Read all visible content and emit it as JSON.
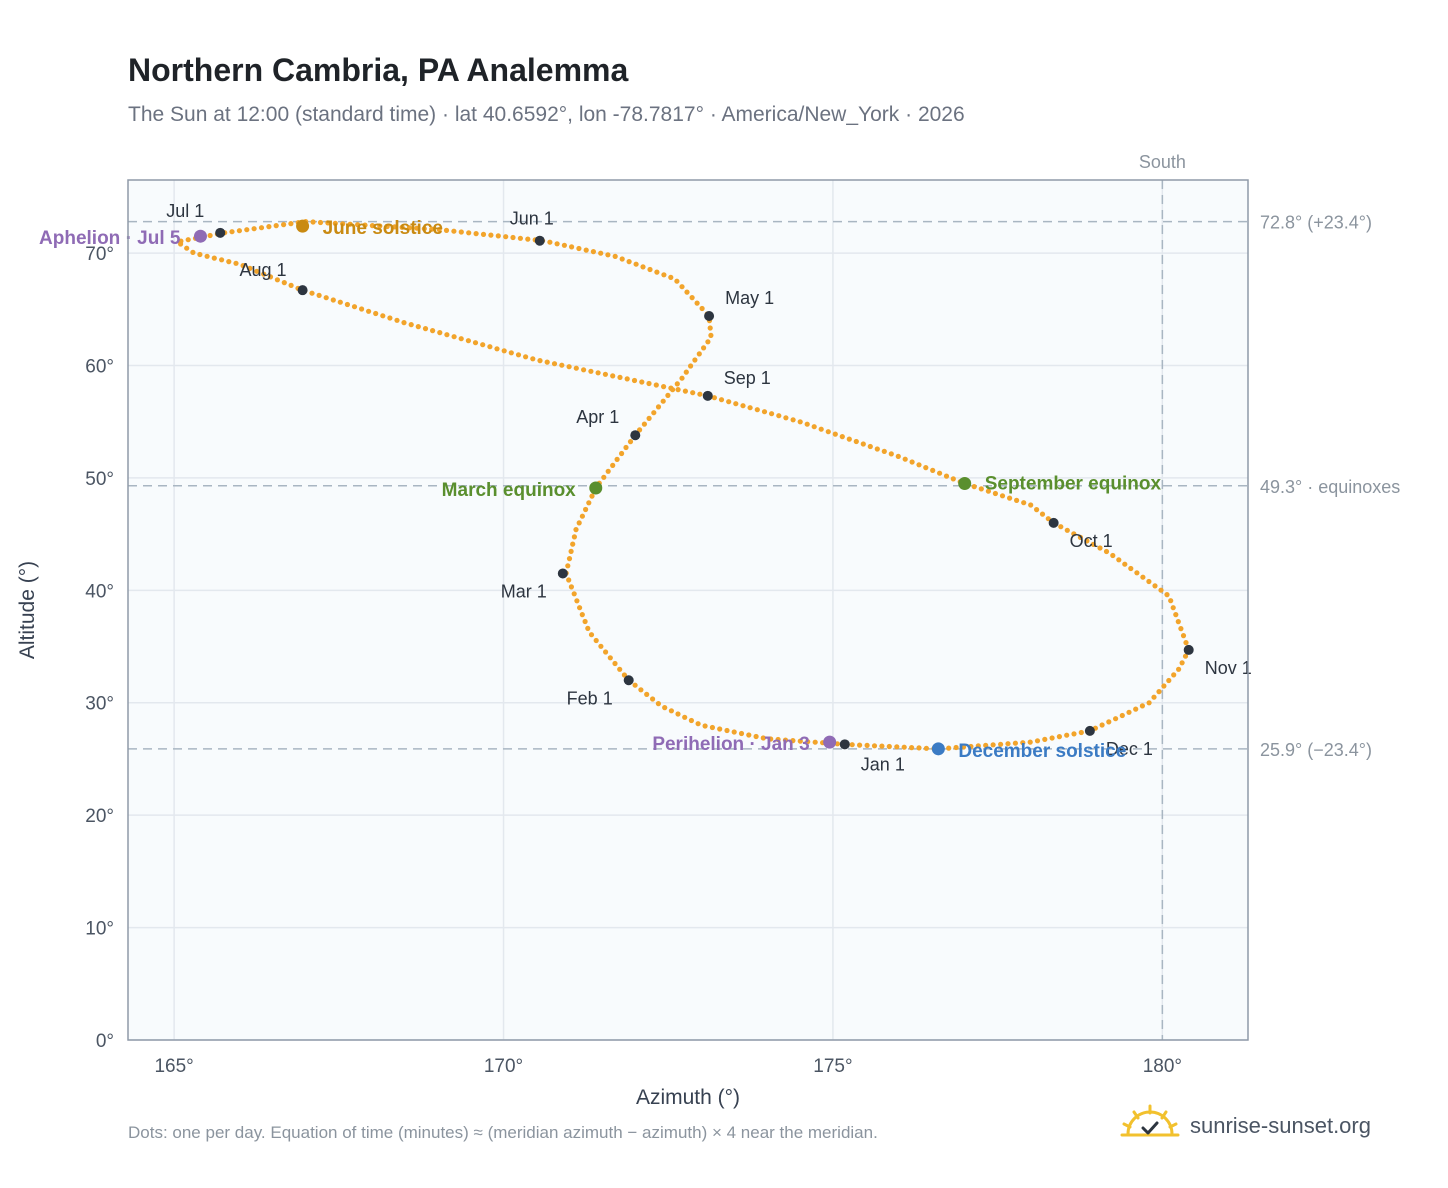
{
  "header": {
    "title": "Northern Cambria, PA Analemma",
    "subtitle": "The Sun at 12:00 (standard time) · lat 40.6592°, lon -78.7817° · America/New_York · 2026"
  },
  "footer": {
    "note": "Dots: one per day. Equation of time (minutes) ≈ (meridian azimuth − azimuth) × 4 near the meridian.",
    "brand": "sunrise-sunset.org"
  },
  "colors": {
    "path": "#F2A42B",
    "month_marker": "#2d3540",
    "june_solstice": "#C98A12",
    "december_solstice": "#3B7BC4",
    "equinox": "#5A8F2E",
    "apsis": "#8F6BB5",
    "plot_bg": "#F8FBFD",
    "grid": "#e3e8ee",
    "reference": "#a9b6c2",
    "frame": "#8f9aa8"
  },
  "chart_data": {
    "type": "scatter",
    "xlabel": "Azimuth (°)",
    "ylabel": "Altitude (°)",
    "xlim": [
      164.3,
      181.3
    ],
    "ylim": [
      0,
      76.5
    ],
    "x_ticks": [
      165,
      170,
      175,
      180
    ],
    "x_tick_labels": [
      "165°",
      "170°",
      "175°",
      "180°"
    ],
    "y_ticks": [
      0,
      10,
      20,
      30,
      40,
      50,
      60,
      70
    ],
    "y_tick_labels": [
      "0°",
      "10°",
      "20°",
      "30°",
      "40°",
      "50°",
      "60°",
      "70°"
    ],
    "grid": true,
    "meridian": {
      "azimuth": 180,
      "label": "South"
    },
    "reference_lines": [
      {
        "altitude": 72.8,
        "label": "72.8° (+23.4°)"
      },
      {
        "altitude": 49.3,
        "label": "49.3° · equinoxes"
      },
      {
        "altitude": 25.9,
        "label": "25.9° (−23.4°)"
      }
    ],
    "path_points": [
      [
        175.18,
        26.3
      ],
      [
        174.0,
        26.8
      ],
      [
        173.0,
        28.0
      ],
      [
        172.4,
        29.7
      ],
      [
        171.9,
        32.0
      ],
      [
        171.3,
        36.3
      ],
      [
        170.95,
        41.5
      ],
      [
        171.1,
        45.4
      ],
      [
        171.4,
        49.1
      ],
      [
        172.0,
        53.8
      ],
      [
        172.7,
        58.8
      ],
      [
        173.15,
        62.5
      ],
      [
        173.12,
        64.4
      ],
      [
        172.6,
        67.7
      ],
      [
        171.7,
        69.7
      ],
      [
        170.6,
        71.1
      ],
      [
        169.0,
        72.1
      ],
      [
        167.0,
        72.8
      ],
      [
        165.75,
        71.8
      ],
      [
        165.05,
        71.0
      ],
      [
        165.3,
        70.0
      ],
      [
        166.0,
        69.0
      ],
      [
        166.95,
        66.7
      ],
      [
        168.5,
        63.8
      ],
      [
        170.5,
        60.5
      ],
      [
        173.1,
        57.3
      ],
      [
        174.5,
        55.0
      ],
      [
        176.0,
        51.9
      ],
      [
        177.0,
        49.5
      ],
      [
        178.0,
        47.6
      ],
      [
        178.35,
        46.0
      ],
      [
        179.2,
        43.3
      ],
      [
        180.1,
        39.5
      ],
      [
        180.4,
        34.7
      ],
      [
        180.25,
        33.0
      ],
      [
        179.8,
        30.0
      ],
      [
        178.9,
        27.5
      ],
      [
        178.0,
        26.5
      ],
      [
        176.6,
        25.9
      ],
      [
        175.18,
        26.3
      ]
    ],
    "month_markers": [
      {
        "label": "Jan 1",
        "x": 175.18,
        "y": 26.3
      },
      {
        "label": "Feb 1",
        "x": 171.9,
        "y": 32.0
      },
      {
        "label": "Mar 1",
        "x": 170.9,
        "y": 41.5
      },
      {
        "label": "Apr 1",
        "x": 172.0,
        "y": 53.8
      },
      {
        "label": "May 1",
        "x": 173.12,
        "y": 64.4
      },
      {
        "label": "Jun 1",
        "x": 170.55,
        "y": 71.1
      },
      {
        "label": "Jul 1",
        "x": 165.7,
        "y": 71.8
      },
      {
        "label": "Aug 1",
        "x": 166.95,
        "y": 66.7
      },
      {
        "label": "Sep 1",
        "x": 173.1,
        "y": 57.3
      },
      {
        "label": "Oct 1",
        "x": 178.35,
        "y": 46.0
      },
      {
        "label": "Nov 1",
        "x": 180.4,
        "y": 34.7
      },
      {
        "label": "Dec 1",
        "x": 178.9,
        "y": 27.5
      }
    ],
    "events": [
      {
        "label": "June solstice",
        "x": 166.95,
        "y": 72.4,
        "kind": "june_solstice"
      },
      {
        "label": "December solstice",
        "x": 176.6,
        "y": 25.9,
        "kind": "december_solstice"
      },
      {
        "label": "March equinox",
        "x": 171.4,
        "y": 49.1,
        "kind": "equinox"
      },
      {
        "label": "September equinox",
        "x": 177.0,
        "y": 49.5,
        "kind": "equinox"
      },
      {
        "label": "Aphelion · Jul 5",
        "x": 165.4,
        "y": 71.5,
        "kind": "apsis"
      },
      {
        "label": "Perihelion · Jan 3",
        "x": 174.95,
        "y": 26.5,
        "kind": "apsis"
      }
    ]
  }
}
